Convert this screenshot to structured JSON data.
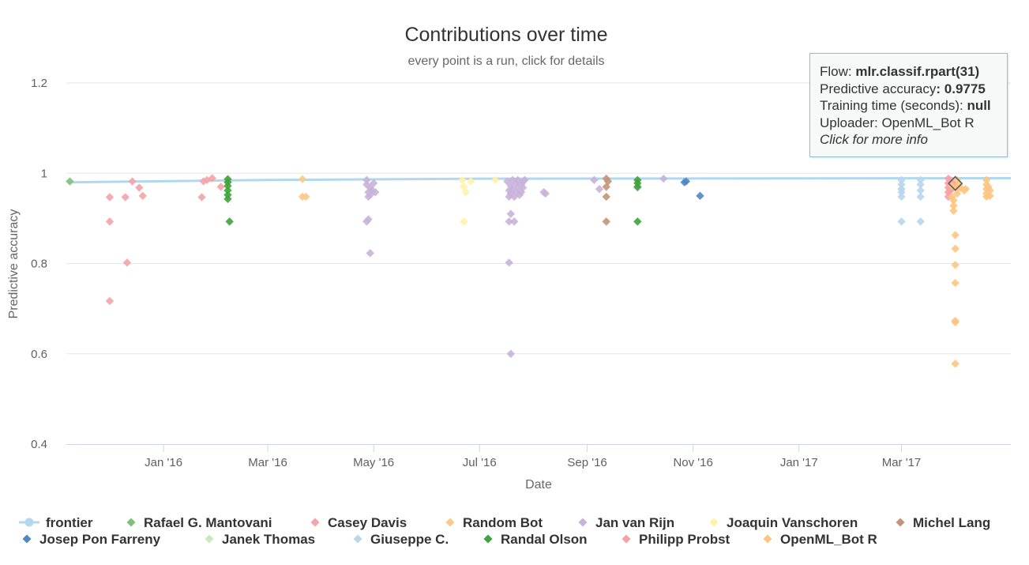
{
  "chart_data": {
    "type": "scatter",
    "title": "Contributions over time",
    "subtitle": "every point is a run, click for details",
    "xlabel": "Date",
    "ylabel": "Predictive accuracy",
    "x_ticks": [
      "Jan '16",
      "Mar '16",
      "May '16",
      "Jul '16",
      "Sep '16",
      "Nov '16",
      "Jan '17",
      "Mar '17"
    ],
    "y_ticks": [
      "0.4",
      "0.6",
      "0.8",
      "1",
      "1.2"
    ],
    "ylim": [
      0.4,
      1.2
    ],
    "xlim": [
      "2015-11-06",
      "2017-05-03"
    ],
    "grid": true,
    "legend_position": "bottom",
    "series": [
      {
        "name": "frontier",
        "color": "#b0d8ee",
        "type": "line",
        "points": [
          [
            "2015-11-07",
            0.98
          ],
          [
            "2016-03-01",
            0.985
          ],
          [
            "2016-07-01",
            0.988
          ],
          [
            "2017-05-03",
            0.989
          ]
        ]
      },
      {
        "name": "Rafael G. Mantovani",
        "color": "#7ec27a",
        "points": [
          [
            "2015-11-08",
            0.982
          ]
        ]
      },
      {
        "name": "Casey Davis",
        "color": "#f4a3a8",
        "points": [
          [
            "2015-12-01",
            0.947
          ],
          [
            "2015-12-01",
            0.893
          ],
          [
            "2015-12-01",
            0.717
          ],
          [
            "2015-12-10",
            0.947
          ],
          [
            "2015-12-11",
            0.802
          ],
          [
            "2015-12-14",
            0.982
          ],
          [
            "2015-12-18",
            0.968
          ],
          [
            "2015-12-20",
            0.95
          ],
          [
            "2016-01-23",
            0.947
          ],
          [
            "2016-01-24",
            0.982
          ],
          [
            "2016-01-26",
            0.985
          ],
          [
            "2016-01-29",
            0.989
          ],
          [
            "2016-02-03",
            0.97
          ]
        ]
      },
      {
        "name": "Random Bot",
        "color": "#fcc98c",
        "points": [
          [
            "2016-03-21",
            0.987
          ],
          [
            "2016-03-21",
            0.948
          ],
          [
            "2016-03-23",
            0.948
          ]
        ]
      },
      {
        "name": "Jan van Rijn",
        "color": "#c8b2d9",
        "points": [
          [
            "2016-04-27",
            0.985
          ],
          [
            "2016-04-27",
            0.975
          ],
          [
            "2016-04-28",
            0.958
          ],
          [
            "2016-04-28",
            0.948
          ],
          [
            "2016-04-29",
            0.968
          ],
          [
            "2016-04-29",
            0.952
          ],
          [
            "2016-04-30",
            0.962
          ],
          [
            "2016-04-28",
            0.898
          ],
          [
            "2016-04-27",
            0.893
          ],
          [
            "2016-04-29",
            0.823
          ],
          [
            "2016-05-01",
            0.978
          ],
          [
            "2016-05-02",
            0.958
          ],
          [
            "2016-07-17",
            0.982
          ],
          [
            "2016-07-18",
            0.962
          ],
          [
            "2016-07-18",
            0.948
          ],
          [
            "2016-07-19",
            0.972
          ],
          [
            "2016-07-19",
            0.955
          ],
          [
            "2016-07-20",
            0.985
          ],
          [
            "2016-07-20",
            0.965
          ],
          [
            "2016-07-21",
            0.948
          ],
          [
            "2016-07-22",
            0.978
          ],
          [
            "2016-07-22",
            0.958
          ],
          [
            "2016-07-23",
            0.985
          ],
          [
            "2016-07-23",
            0.968
          ],
          [
            "2016-07-24",
            0.952
          ],
          [
            "2016-07-25",
            0.975
          ],
          [
            "2016-07-25",
            0.958
          ],
          [
            "2016-07-26",
            0.982
          ],
          [
            "2016-07-26",
            0.968
          ],
          [
            "2016-07-27",
            0.985
          ],
          [
            "2016-07-18",
            0.893
          ],
          [
            "2016-07-19",
            0.91
          ],
          [
            "2016-07-21",
            0.893
          ],
          [
            "2016-07-18",
            0.802
          ],
          [
            "2016-07-19",
            0.6
          ],
          [
            "2016-08-07",
            0.958
          ],
          [
            "2016-08-08",
            0.955
          ],
          [
            "2016-09-05",
            0.985
          ],
          [
            "2016-09-08",
            0.965
          ],
          [
            "2016-09-30",
            0.968
          ],
          [
            "2016-10-15",
            0.988
          ]
        ]
      },
      {
        "name": "Joaquin Vanschoren",
        "color": "#fff3a8",
        "points": [
          [
            "2016-06-21",
            0.985
          ],
          [
            "2016-06-22",
            0.97
          ],
          [
            "2016-06-23",
            0.958
          ],
          [
            "2016-06-22",
            0.893
          ],
          [
            "2016-06-26",
            0.982
          ],
          [
            "2016-07-10",
            0.985
          ]
        ]
      },
      {
        "name": "Michel Lang",
        "color": "#c49378",
        "points": [
          [
            "2016-09-12",
            0.988
          ],
          [
            "2016-09-12",
            0.97
          ],
          [
            "2016-09-12",
            0.948
          ],
          [
            "2016-09-12",
            0.893
          ],
          [
            "2016-09-13",
            0.982
          ]
        ]
      },
      {
        "name": "Josep Pon Farreny",
        "color": "#5088c0",
        "points": [
          [
            "2016-10-27",
            0.98
          ],
          [
            "2016-10-28",
            0.982
          ],
          [
            "2016-11-05",
            0.95
          ]
        ]
      },
      {
        "name": "Janek Thomas",
        "color": "#cde8c0",
        "points": [
          [
            "2017-03-01",
            0.965
          ]
        ]
      },
      {
        "name": "Giuseppe C.",
        "color": "#b8d6ee",
        "points": [
          [
            "2017-03-01",
            0.985
          ],
          [
            "2017-03-01",
            0.975
          ],
          [
            "2017-03-01",
            0.965
          ],
          [
            "2017-03-01",
            0.958
          ],
          [
            "2017-03-01",
            0.948
          ],
          [
            "2017-03-01",
            0.893
          ],
          [
            "2017-03-12",
            0.985
          ],
          [
            "2017-03-12",
            0.975
          ],
          [
            "2017-03-12",
            0.962
          ],
          [
            "2017-03-12",
            0.948
          ],
          [
            "2017-03-12",
            0.893
          ]
        ]
      },
      {
        "name": "Randal Olson",
        "color": "#3fa23a",
        "points": [
          [
            "2016-02-07",
            0.987
          ],
          [
            "2016-02-07",
            0.98
          ],
          [
            "2016-02-07",
            0.972
          ],
          [
            "2016-02-07",
            0.962
          ],
          [
            "2016-02-07",
            0.952
          ],
          [
            "2016-02-07",
            0.943
          ],
          [
            "2016-02-08",
            0.893
          ],
          [
            "2016-09-30",
            0.985
          ],
          [
            "2016-09-30",
            0.978
          ],
          [
            "2016-09-30",
            0.97
          ],
          [
            "2016-09-30",
            0.893
          ]
        ]
      },
      {
        "name": "Philipp Probst",
        "color": "#f7a1a6",
        "points": [
          [
            "2017-03-28",
            0.988
          ],
          [
            "2017-03-28",
            0.978
          ],
          [
            "2017-03-28",
            0.968
          ],
          [
            "2017-03-28",
            0.958
          ],
          [
            "2017-03-28",
            0.948
          ],
          [
            "2017-03-29",
            0.985
          ],
          [
            "2017-03-29",
            0.972
          ],
          [
            "2017-03-29",
            0.962
          ],
          [
            "2017-03-30",
            0.982
          ],
          [
            "2017-03-30",
            0.965
          ],
          [
            "2017-03-31",
            0.975
          ],
          [
            "2017-04-01",
            0.968
          ]
        ]
      },
      {
        "name": "OpenML_Bot R",
        "color": "#fdc57f",
        "points": [
          [
            "2017-03-30",
            0.972
          ],
          [
            "2017-03-30",
            0.948
          ],
          [
            "2017-03-31",
            0.94
          ],
          [
            "2017-03-31",
            0.928
          ],
          [
            "2017-03-31",
            0.917
          ],
          [
            "2017-04-01",
            0.863
          ],
          [
            "2017-04-01",
            0.833
          ],
          [
            "2017-04-01",
            0.797
          ],
          [
            "2017-04-01",
            0.757
          ],
          [
            "2017-04-01",
            0.673
          ],
          [
            "2017-04-01",
            0.67
          ],
          [
            "2017-04-01",
            0.578
          ],
          [
            "2017-04-02",
            0.985
          ],
          [
            "2017-04-02",
            0.965
          ],
          [
            "2017-04-02",
            0.955
          ],
          [
            "2017-04-03",
            0.975
          ],
          [
            "2017-04-04",
            0.968
          ],
          [
            "2017-04-06",
            0.962
          ],
          [
            "2017-04-07",
            0.965
          ],
          [
            "2017-04-19",
            0.985
          ],
          [
            "2017-04-19",
            0.975
          ],
          [
            "2017-04-19",
            0.965
          ],
          [
            "2017-04-19",
            0.955
          ],
          [
            "2017-04-19",
            0.948
          ],
          [
            "2017-04-20",
            0.97
          ],
          [
            "2017-04-21",
            0.962
          ],
          [
            "2017-04-21",
            0.95
          ]
        ]
      }
    ]
  },
  "tooltip": {
    "flow_label": "Flow: ",
    "flow_value": "mlr.classif.rpart(31)",
    "accuracy_label": "Predictive accuracy",
    "accuracy_value": ": 0.9775",
    "time_label": "Training time (seconds): ",
    "time_value": "null",
    "uploader_label": "Uploader: ",
    "uploader_value": "OpenML_Bot R",
    "more_info": "Click for more info"
  },
  "highlight": {
    "x": "2017-04-01",
    "y": 0.9775
  }
}
